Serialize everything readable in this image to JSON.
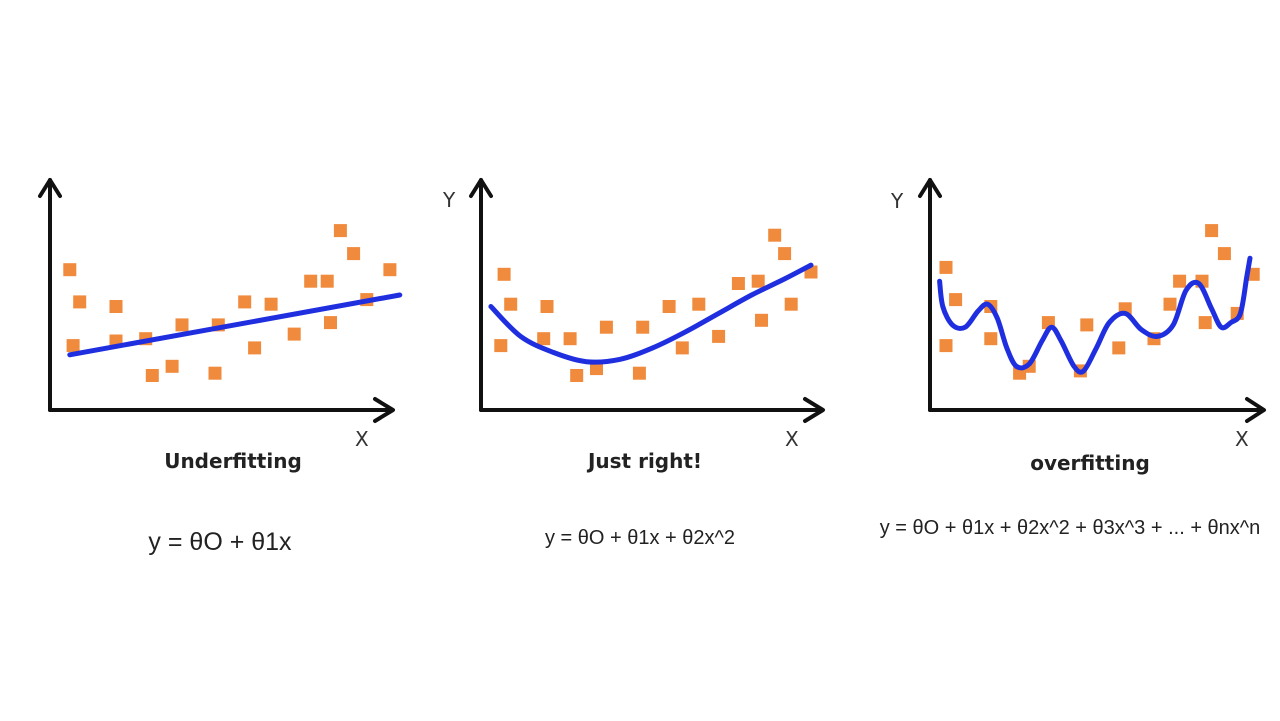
{
  "colors": {
    "axis": "#111111",
    "point": "#f08a3c",
    "curve": "#1f2fe0",
    "text": "#222222"
  },
  "panels": [
    {
      "title": "Underfitting",
      "y_label": "",
      "x_label": "X",
      "equation": "y = θO + θ1x",
      "points": [
        [
          0.06,
          0.61
        ],
        [
          0.09,
          0.47
        ],
        [
          0.07,
          0.28
        ],
        [
          0.2,
          0.45
        ],
        [
          0.2,
          0.3
        ],
        [
          0.29,
          0.31
        ],
        [
          0.31,
          0.15
        ],
        [
          0.37,
          0.19
        ],
        [
          0.4,
          0.37
        ],
        [
          0.5,
          0.16
        ],
        [
          0.51,
          0.37
        ],
        [
          0.59,
          0.47
        ],
        [
          0.62,
          0.27
        ],
        [
          0.67,
          0.46
        ],
        [
          0.74,
          0.33
        ],
        [
          0.79,
          0.56
        ],
        [
          0.84,
          0.56
        ],
        [
          0.85,
          0.38
        ],
        [
          0.88,
          0.78
        ],
        [
          0.92,
          0.68
        ],
        [
          0.96,
          0.48
        ],
        [
          1.03,
          0.61
        ]
      ],
      "fit": [
        [
          0.06,
          0.24
        ],
        [
          1.06,
          0.5
        ]
      ]
    },
    {
      "title": "Just right!",
      "y_label": "Y",
      "x_label": "X",
      "equation": "y = θO + θ1x + θ2x^2",
      "points": [
        [
          0.07,
          0.59
        ],
        [
          0.09,
          0.46
        ],
        [
          0.06,
          0.28
        ],
        [
          0.2,
          0.45
        ],
        [
          0.19,
          0.31
        ],
        [
          0.27,
          0.31
        ],
        [
          0.29,
          0.15
        ],
        [
          0.35,
          0.18
        ],
        [
          0.38,
          0.36
        ],
        [
          0.48,
          0.16
        ],
        [
          0.49,
          0.36
        ],
        [
          0.57,
          0.45
        ],
        [
          0.61,
          0.27
        ],
        [
          0.66,
          0.46
        ],
        [
          0.72,
          0.32
        ],
        [
          0.78,
          0.55
        ],
        [
          0.84,
          0.56
        ],
        [
          0.85,
          0.39
        ],
        [
          0.89,
          0.76
        ],
        [
          0.92,
          0.68
        ],
        [
          0.94,
          0.46
        ],
        [
          1.0,
          0.6
        ]
      ],
      "fit": [
        [
          0.03,
          0.45
        ],
        [
          0.12,
          0.32
        ],
        [
          0.22,
          0.25
        ],
        [
          0.32,
          0.21
        ],
        [
          0.42,
          0.22
        ],
        [
          0.52,
          0.27
        ],
        [
          0.62,
          0.34
        ],
        [
          0.72,
          0.42
        ],
        [
          0.82,
          0.5
        ],
        [
          0.92,
          0.57
        ],
        [
          1.0,
          0.63
        ]
      ]
    },
    {
      "title": "overfitting",
      "y_label": "Y",
      "x_label": "X",
      "equation": "y = θO + θ1x + θ2x^2 + θ3x^3 + ... + θnx^n",
      "points": [
        [
          0.05,
          0.62
        ],
        [
          0.08,
          0.48
        ],
        [
          0.05,
          0.28
        ],
        [
          0.19,
          0.31
        ],
        [
          0.19,
          0.45
        ],
        [
          0.28,
          0.16
        ],
        [
          0.31,
          0.19
        ],
        [
          0.37,
          0.38
        ],
        [
          0.47,
          0.17
        ],
        [
          0.49,
          0.37
        ],
        [
          0.59,
          0.27
        ],
        [
          0.61,
          0.44
        ],
        [
          0.7,
          0.31
        ],
        [
          0.75,
          0.46
        ],
        [
          0.78,
          0.56
        ],
        [
          0.85,
          0.56
        ],
        [
          0.86,
          0.38
        ],
        [
          0.88,
          0.78
        ],
        [
          0.92,
          0.68
        ],
        [
          0.96,
          0.42
        ],
        [
          1.01,
          0.59
        ]
      ],
      "fit": [
        [
          0.03,
          0.56
        ],
        [
          0.04,
          0.45
        ],
        [
          0.07,
          0.37
        ],
        [
          0.11,
          0.36
        ],
        [
          0.15,
          0.43
        ],
        [
          0.18,
          0.46
        ],
        [
          0.21,
          0.4
        ],
        [
          0.24,
          0.27
        ],
        [
          0.27,
          0.19
        ],
        [
          0.31,
          0.2
        ],
        [
          0.35,
          0.3
        ],
        [
          0.38,
          0.36
        ],
        [
          0.41,
          0.3
        ],
        [
          0.45,
          0.19
        ],
        [
          0.48,
          0.17
        ],
        [
          0.52,
          0.27
        ],
        [
          0.56,
          0.38
        ],
        [
          0.61,
          0.42
        ],
        [
          0.66,
          0.35
        ],
        [
          0.71,
          0.32
        ],
        [
          0.76,
          0.37
        ],
        [
          0.8,
          0.52
        ],
        [
          0.84,
          0.55
        ],
        [
          0.88,
          0.44
        ],
        [
          0.91,
          0.36
        ],
        [
          0.94,
          0.38
        ],
        [
          0.97,
          0.42
        ],
        [
          0.99,
          0.58
        ],
        [
          1.0,
          0.66
        ]
      ]
    }
  ]
}
